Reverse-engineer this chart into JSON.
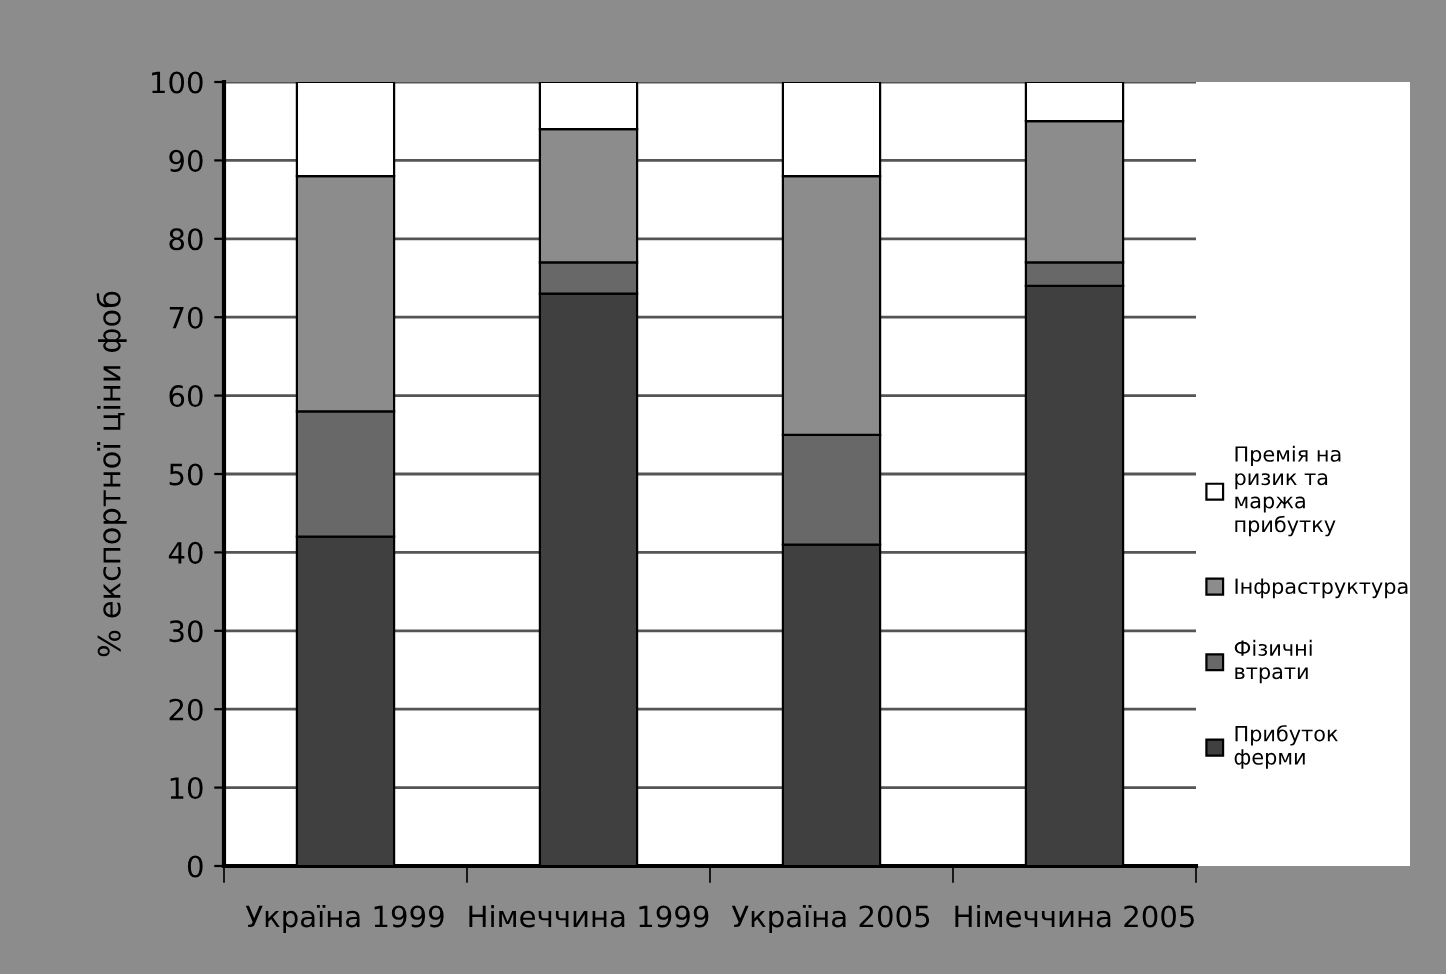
{
  "chart_data": {
    "type": "bar",
    "stacked": true,
    "ylabel": "% експортної ціни фоб",
    "categories": [
      "Україна 1999",
      "Німеччина 1999",
      "Україна 2005",
      "Німеччина 2005"
    ],
    "series": [
      {
        "name": "Прибуток ферми",
        "color": "#404040",
        "values": [
          42,
          73,
          41,
          74
        ]
      },
      {
        "name": "Фізичні втрати",
        "color": "#686868",
        "values": [
          16,
          4,
          14,
          3
        ]
      },
      {
        "name": "Інфраструктура",
        "color": "#8c8c8c",
        "values": [
          30,
          17,
          33,
          18
        ]
      },
      {
        "name": "Премія на ризик та маржа прибутку",
        "color": "#ffffff",
        "values": [
          12,
          6,
          12,
          5
        ]
      }
    ],
    "ylim": [
      0,
      100
    ],
    "yticks": [
      0,
      10,
      20,
      30,
      40,
      50,
      60,
      70,
      80,
      90,
      100
    ],
    "grid": "y",
    "legend": "right"
  }
}
